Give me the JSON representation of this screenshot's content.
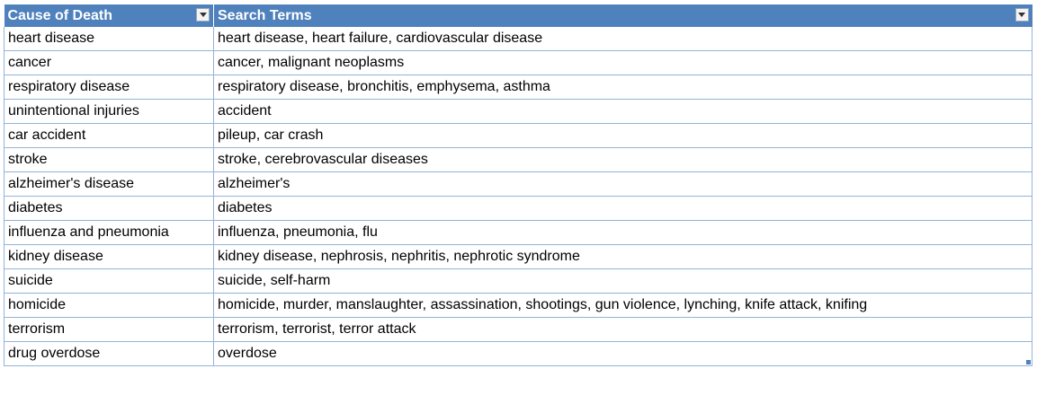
{
  "table": {
    "headers": [
      "Cause of Death",
      "Search Terms"
    ],
    "rows": [
      [
        "heart disease",
        "heart disease, heart failure, cardiovascular disease"
      ],
      [
        "cancer",
        "cancer, malignant neoplasms"
      ],
      [
        "respiratory disease",
        "respiratory disease, bronchitis, emphysema, asthma"
      ],
      [
        "unintentional injuries",
        "accident"
      ],
      [
        "car accident",
        "pileup, car crash"
      ],
      [
        "stroke",
        "stroke, cerebrovascular diseases"
      ],
      [
        "alzheimer's disease",
        "alzheimer's"
      ],
      [
        "diabetes",
        "diabetes"
      ],
      [
        "influenza and pneumonia",
        "influenza, pneumonia, flu"
      ],
      [
        "kidney disease",
        "kidney disease, nephrosis, nephritis, nephrotic syndrome"
      ],
      [
        "suicide",
        "suicide, self-harm"
      ],
      [
        "homicide",
        "homicide, murder, manslaughter, assassination, shootings, gun violence, lynching, knife attack, knifing"
      ],
      [
        "terrorism",
        "terrorism, terrorist, terror attack"
      ],
      [
        "drug overdose",
        "overdose"
      ]
    ]
  },
  "icons": {
    "filter": "filter-dropdown-icon"
  },
  "colors": {
    "header_bg": "#4f81bd",
    "header_text": "#ffffff",
    "grid_line": "#95b3d7"
  }
}
